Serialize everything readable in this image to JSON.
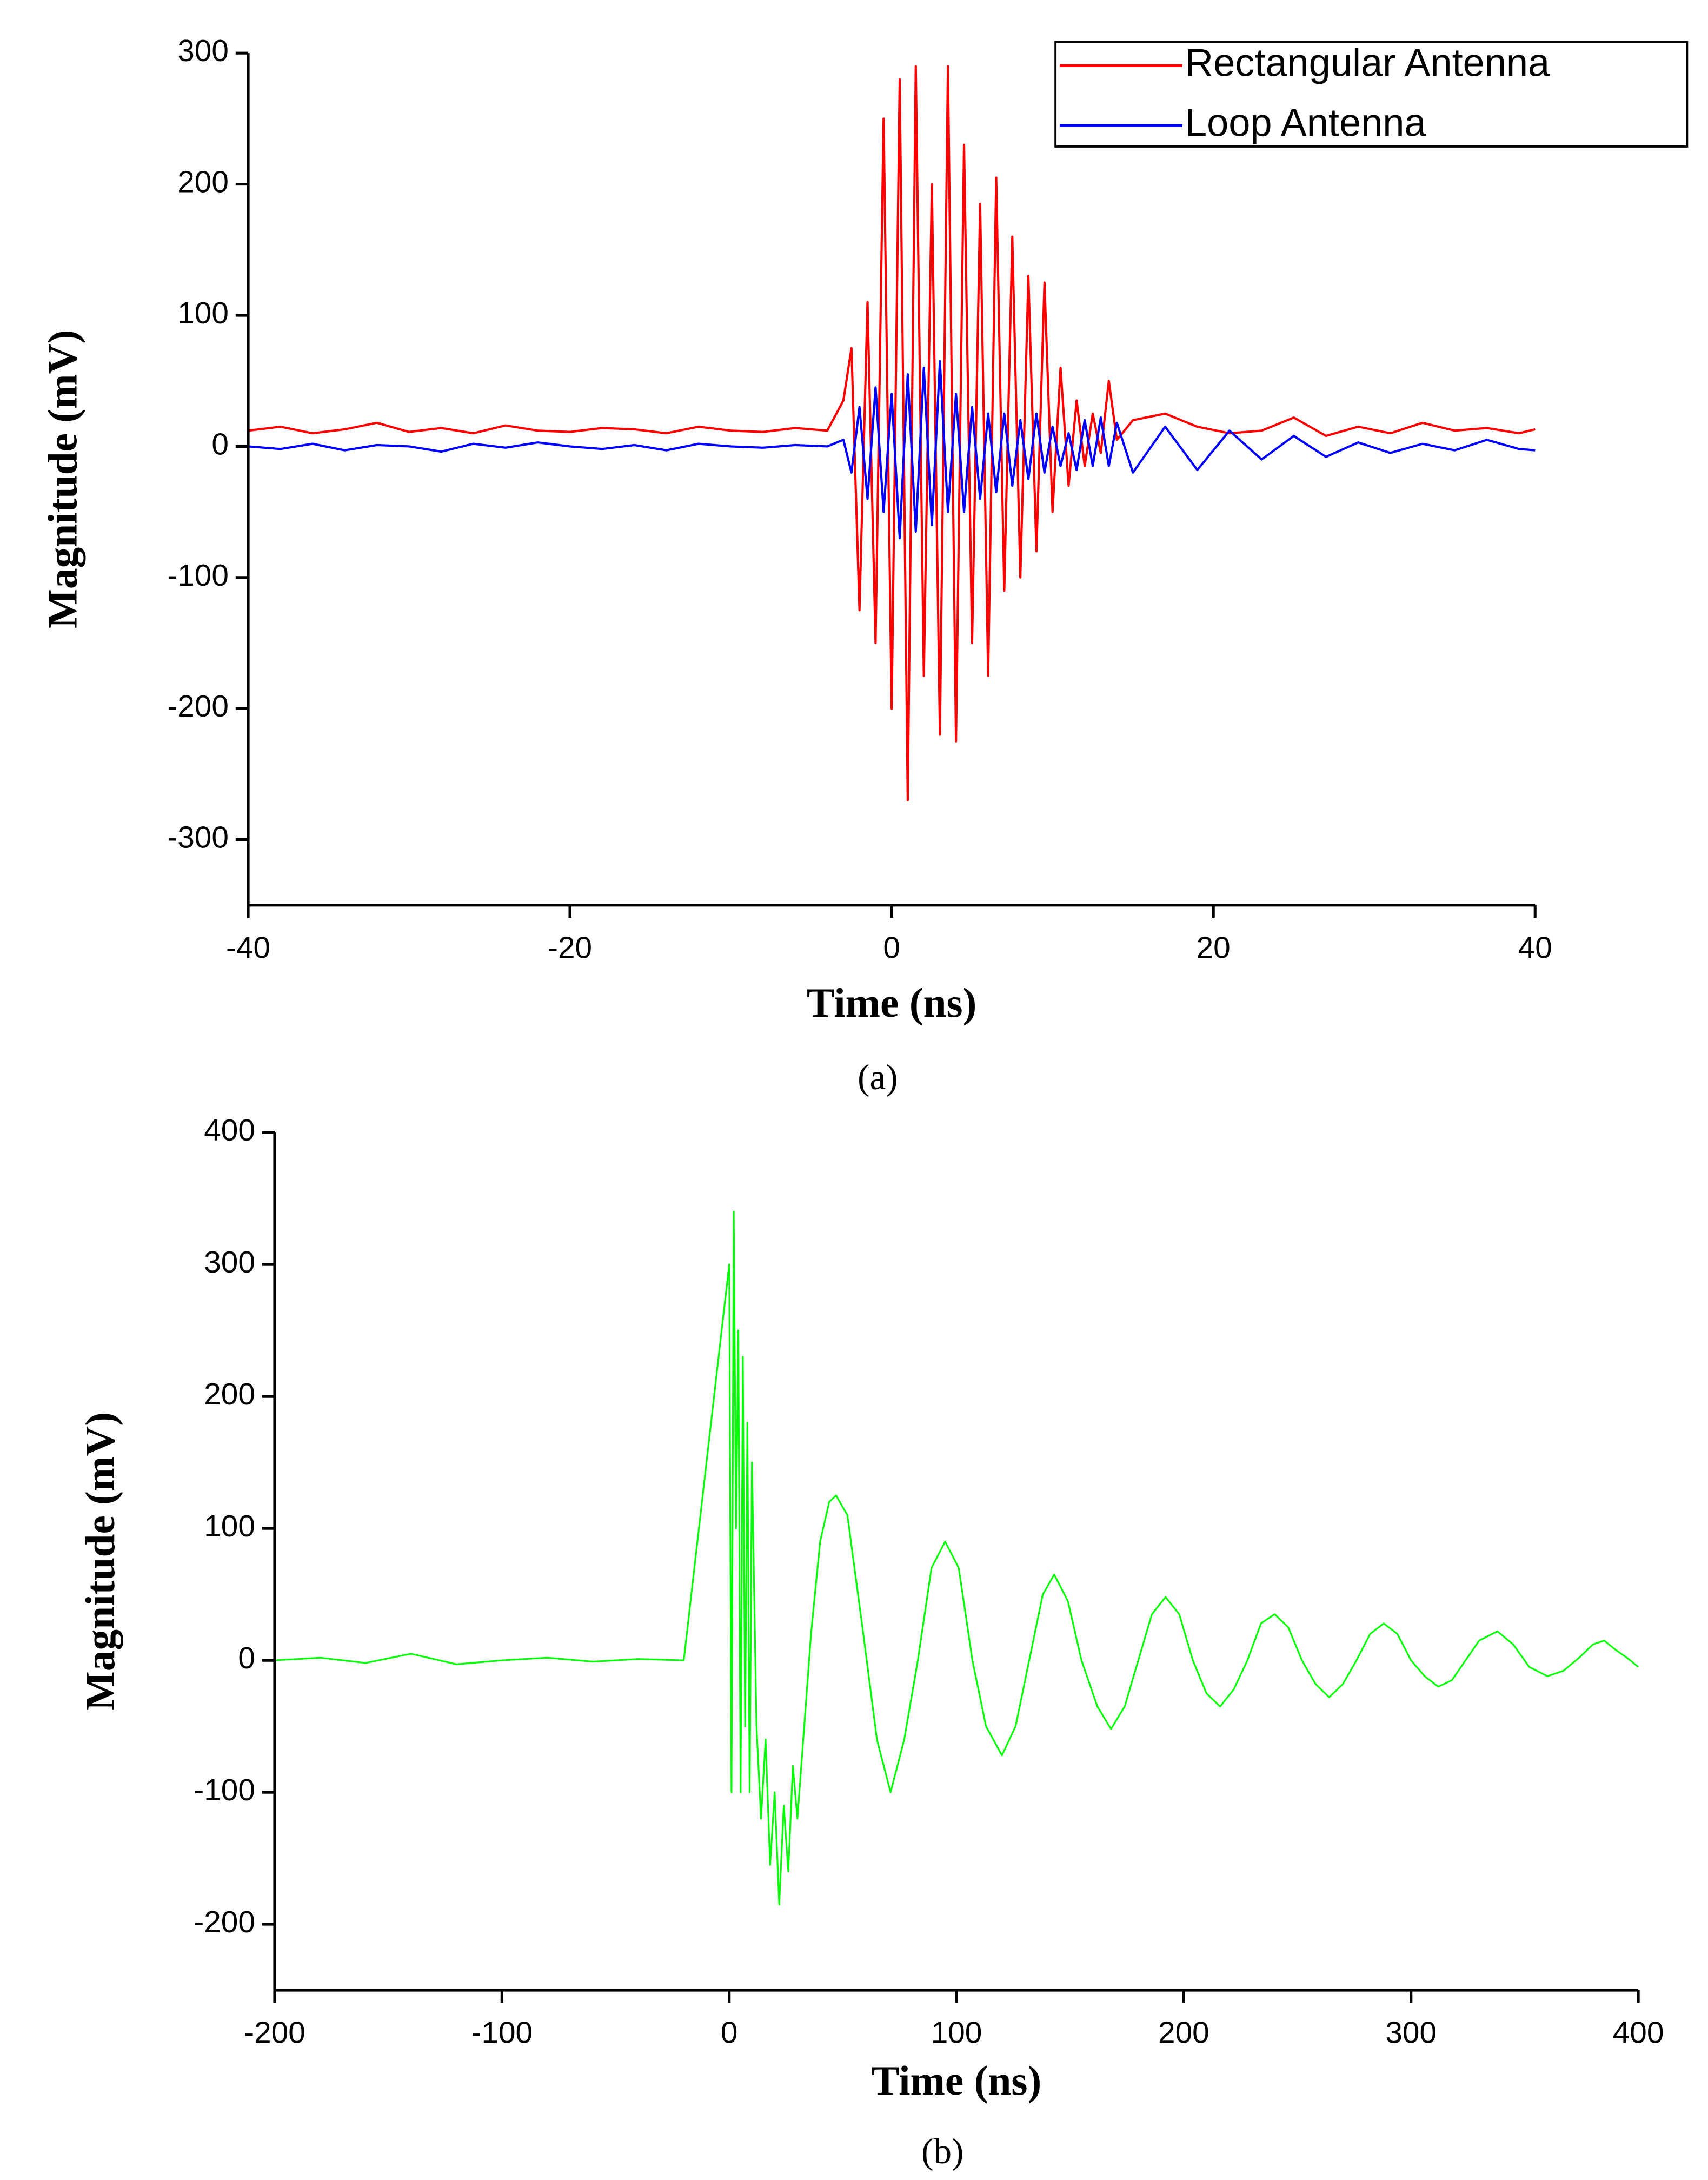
{
  "chart_data": [
    {
      "type": "line",
      "caption": "(a)",
      "xlabel": "Time (ns)",
      "ylabel": "Magnitude (mV)",
      "xlim": [
        -40,
        40
      ],
      "ylim": [
        -350,
        300
      ],
      "xticks": [
        -40,
        -20,
        0,
        20,
        40
      ],
      "yticks": [
        -300,
        -200,
        -100,
        0,
        100,
        200,
        300
      ],
      "legend": "upper right",
      "x": [
        -40,
        -38,
        -36,
        -34,
        -32,
        -30,
        -28,
        -26,
        -24,
        -22,
        -20,
        -18,
        -16,
        -14,
        -12,
        -10,
        -8,
        -6,
        -4,
        -3,
        -2.5,
        -2,
        -1.5,
        -1,
        -0.5,
        0,
        0.5,
        1,
        1.5,
        2,
        2.5,
        3,
        3.5,
        4,
        4.5,
        5,
        5.5,
        6,
        6.5,
        7,
        7.5,
        8,
        8.5,
        9,
        9.5,
        10,
        10.5,
        11,
        11.5,
        12,
        12.5,
        13,
        13.5,
        14,
        15,
        17,
        19,
        21,
        23,
        25,
        27,
        29,
        31,
        33,
        35,
        37,
        39,
        40
      ],
      "series": [
        {
          "name": "Rectangular Antenna",
          "color": "#ff0000",
          "values": [
            12,
            15,
            10,
            13,
            18,
            11,
            14,
            10,
            16,
            12,
            11,
            14,
            13,
            10,
            15,
            12,
            11,
            14,
            12,
            35,
            75,
            -125,
            110,
            -150,
            250,
            -200,
            280,
            -270,
            290,
            -175,
            200,
            -220,
            290,
            -225,
            230,
            -150,
            185,
            -175,
            205,
            -110,
            160,
            -100,
            130,
            -80,
            125,
            -50,
            60,
            -30,
            35,
            -15,
            25,
            -5,
            50,
            5,
            20,
            25,
            15,
            10,
            12,
            22,
            8,
            15,
            10,
            18,
            12,
            14,
            10,
            13
          ]
        },
        {
          "name": "Loop Antenna",
          "color": "#0000ff",
          "values": [
            0,
            -2,
            2,
            -3,
            1,
            0,
            -4,
            2,
            -1,
            3,
            0,
            -2,
            1,
            -3,
            2,
            0,
            -1,
            1,
            0,
            5,
            -20,
            30,
            -40,
            45,
            -50,
            40,
            -70,
            55,
            -65,
            60,
            -60,
            65,
            -50,
            40,
            -50,
            30,
            -40,
            25,
            -35,
            25,
            -30,
            20,
            -25,
            25,
            -20,
            15,
            -15,
            10,
            -18,
            20,
            -15,
            22,
            -15,
            18,
            -20,
            15,
            -18,
            12,
            -10,
            8,
            -8,
            3,
            -5,
            2,
            -3,
            5,
            -2,
            -3
          ]
        }
      ]
    },
    {
      "type": "line",
      "caption": "(b)",
      "xlabel": "Time (ns)",
      "ylabel": "Magnitude (mV)",
      "xlim": [
        -200,
        400
      ],
      "ylim": [
        -250,
        400
      ],
      "xticks": [
        -200,
        -100,
        0,
        100,
        200,
        300,
        400
      ],
      "yticks": [
        -200,
        -100,
        0,
        100,
        200,
        300,
        400
      ],
      "x": [
        -200,
        -180,
        -160,
        -140,
        -120,
        -100,
        -80,
        -60,
        -40,
        -20,
        0,
        1,
        2,
        3,
        4,
        5,
        6,
        7,
        8,
        9,
        10,
        12,
        14,
        16,
        18,
        20,
        22,
        24,
        26,
        28,
        30,
        33,
        36,
        40,
        44,
        47,
        52,
        59,
        65,
        71,
        77,
        83,
        89,
        95,
        101,
        107,
        113,
        120,
        126,
        132,
        138,
        143,
        149,
        155,
        162,
        168,
        174,
        180,
        186,
        192,
        198,
        204,
        210,
        216,
        222,
        228,
        234,
        240,
        246,
        252,
        258,
        264,
        270,
        276,
        282,
        288,
        294,
        300,
        306,
        312,
        318,
        324,
        330,
        338,
        345,
        352,
        360,
        367,
        374,
        380,
        385,
        390,
        395,
        400
      ],
      "series": [
        {
          "name": "Magnitude",
          "color": "#00ff00",
          "values": [
            0,
            2,
            -2,
            5,
            -3,
            0,
            2,
            -1,
            1,
            0,
            300,
            -100,
            340,
            100,
            250,
            -100,
            230,
            -50,
            180,
            -100,
            150,
            -50,
            -120,
            -60,
            -155,
            -100,
            -185,
            -110,
            -160,
            -80,
            -120,
            -50,
            20,
            90,
            120,
            125,
            110,
            20,
            -60,
            -100,
            -60,
            0,
            70,
            90,
            70,
            0,
            -50,
            -72,
            -50,
            0,
            50,
            65,
            45,
            0,
            -35,
            -52,
            -35,
            0,
            35,
            48,
            35,
            0,
            -25,
            -35,
            -22,
            0,
            28,
            35,
            25,
            0,
            -18,
            -28,
            -18,
            0,
            20,
            28,
            20,
            0,
            -12,
            -20,
            -15,
            0,
            15,
            22,
            12,
            -5,
            -12,
            -8,
            2,
            12,
            15,
            8,
            2,
            -5
          ]
        }
      ]
    }
  ]
}
